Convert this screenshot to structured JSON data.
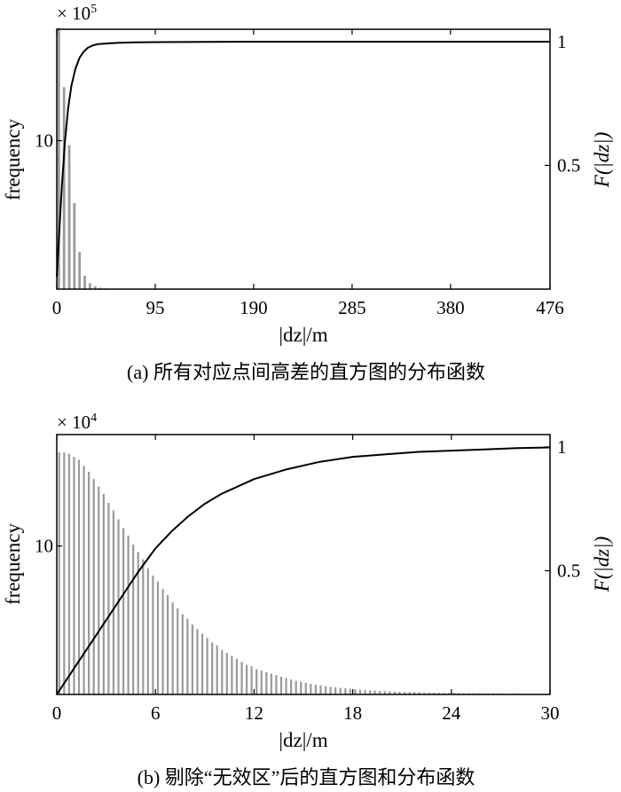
{
  "chart_data": [
    {
      "type": "bar",
      "overlay": "line",
      "caption": "(a) 所有对应点间高差的直方图的分布函数",
      "xlabel": "|dz|/m",
      "ylabel": "frequency",
      "ylabel_right": "F(|dz|)",
      "multiplier": {
        "base": "× 10",
        "exponent": "5"
      },
      "xlim": [
        0,
        476
      ],
      "x_ticks": [
        "0",
        "95",
        "190",
        "285",
        "380",
        "476"
      ],
      "x_tick_values": [
        0,
        95,
        190,
        285,
        380,
        476
      ],
      "ylim": [
        0,
        17.5
      ],
      "y_ticks": [
        "10"
      ],
      "y_tick_values": [
        10
      ],
      "y2lim": [
        0,
        1.05
      ],
      "y2_ticks": [
        "0.5",
        "1"
      ],
      "y2_tick_values": [
        0.5,
        1
      ],
      "bars": {
        "x": [
          2,
          7,
          12,
          17,
          22,
          27,
          32,
          37,
          42,
          47
        ],
        "values": [
          17.6,
          13.6,
          9.7,
          5.8,
          2.5,
          0.9,
          0.4,
          0.2,
          0.1,
          0.05
        ]
      },
      "cdf": {
        "x": [
          0,
          2,
          5,
          8,
          11,
          14,
          18,
          22,
          26,
          30,
          35,
          40,
          50,
          60,
          75,
          95,
          140,
          190,
          285,
          380,
          476
        ],
        "values": [
          0.05,
          0.2,
          0.42,
          0.6,
          0.73,
          0.82,
          0.89,
          0.935,
          0.96,
          0.975,
          0.985,
          0.99,
          0.993,
          0.995,
          0.997,
          0.998,
          0.999,
          1.0,
          1.0,
          1.0,
          1.0
        ]
      }
    },
    {
      "type": "bar",
      "overlay": "line",
      "caption": "(b) 剔除“无效区”后的直方图和分布函数",
      "xlabel": "|dz|/m",
      "ylabel": "frequency",
      "ylabel_right": "F(|dz|)",
      "multiplier": {
        "base": "× 10",
        "exponent": "4"
      },
      "xlim": [
        0,
        30
      ],
      "x_ticks": [
        "0",
        "6",
        "12",
        "18",
        "24",
        "30"
      ],
      "x_tick_values": [
        0,
        6,
        12,
        18,
        24,
        30
      ],
      "ylim": [
        0,
        17.5
      ],
      "y_ticks": [
        "10"
      ],
      "y_tick_values": [
        10
      ],
      "y2lim": [
        0,
        1.05
      ],
      "y2_ticks": [
        "0.5",
        "1"
      ],
      "y2_tick_values": [
        0.5,
        1
      ],
      "bars": {
        "bin_width": 0.3,
        "decay": 0.05,
        "peak": 16.3,
        "count": 100,
        "values": [
          16.3,
          16.3,
          16.2,
          16.0,
          15.8,
          15.4,
          15.0,
          14.5,
          14.0,
          13.5,
          12.9,
          12.4,
          11.8,
          11.2,
          10.7,
          10.1,
          9.6,
          9.1,
          8.5,
          8.0,
          7.6,
          7.1,
          6.7,
          6.2,
          5.8,
          5.4,
          5.1,
          4.7,
          4.4,
          4.1,
          3.8,
          3.5,
          3.3,
          3.0,
          2.8,
          2.6,
          2.4,
          2.2,
          2.0,
          1.9,
          1.7,
          1.6,
          1.5,
          1.4,
          1.3,
          1.2,
          1.1,
          1.0,
          0.92,
          0.85,
          0.78,
          0.72,
          0.66,
          0.61,
          0.56,
          0.52,
          0.48,
          0.44,
          0.41,
          0.38,
          0.35,
          0.32,
          0.3,
          0.28,
          0.26,
          0.24,
          0.22,
          0.21,
          0.19,
          0.18,
          0.17,
          0.16,
          0.15,
          0.14,
          0.13,
          0.12,
          0.11,
          0.11,
          0.1,
          0.1,
          0.09,
          0.09,
          0.08,
          0.08,
          0.08,
          0.07,
          0.07,
          0.07,
          0.07,
          0.06,
          0.06,
          0.06,
          0.06,
          0.06,
          0.05,
          0.05,
          0.05,
          0.05,
          0.05,
          0.05
        ]
      },
      "cdf": {
        "x": [
          0,
          1,
          2,
          3,
          4,
          5,
          6,
          7,
          8,
          9,
          10,
          12,
          14,
          16,
          18,
          20,
          22,
          24,
          26,
          28,
          30
        ],
        "values": [
          0.0,
          0.1,
          0.2,
          0.3,
          0.4,
          0.5,
          0.59,
          0.66,
          0.72,
          0.77,
          0.81,
          0.87,
          0.91,
          0.94,
          0.96,
          0.97,
          0.98,
          0.985,
          0.99,
          0.995,
          0.998
        ]
      }
    }
  ]
}
